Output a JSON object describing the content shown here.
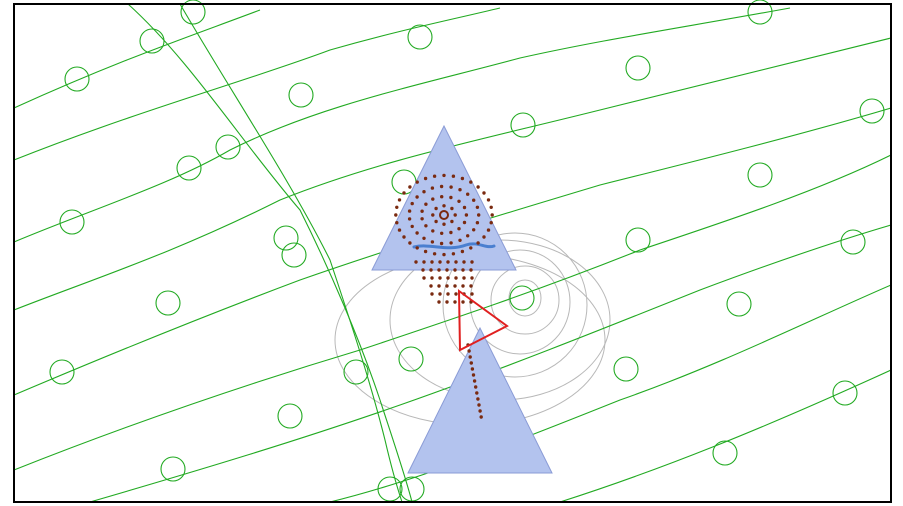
{
  "scene": {
    "background": "#ffffff",
    "frame_color": "#000000",
    "guide_color": "#22aa22",
    "obstacle_fill": "#b3c3ee",
    "obstacle_stroke": "#8a9bd6",
    "agent_color": "#e02020",
    "sample_color": "#7a2a10",
    "path_color": "#4a7fd0",
    "contour_color": "#b8b8b8"
  }
}
